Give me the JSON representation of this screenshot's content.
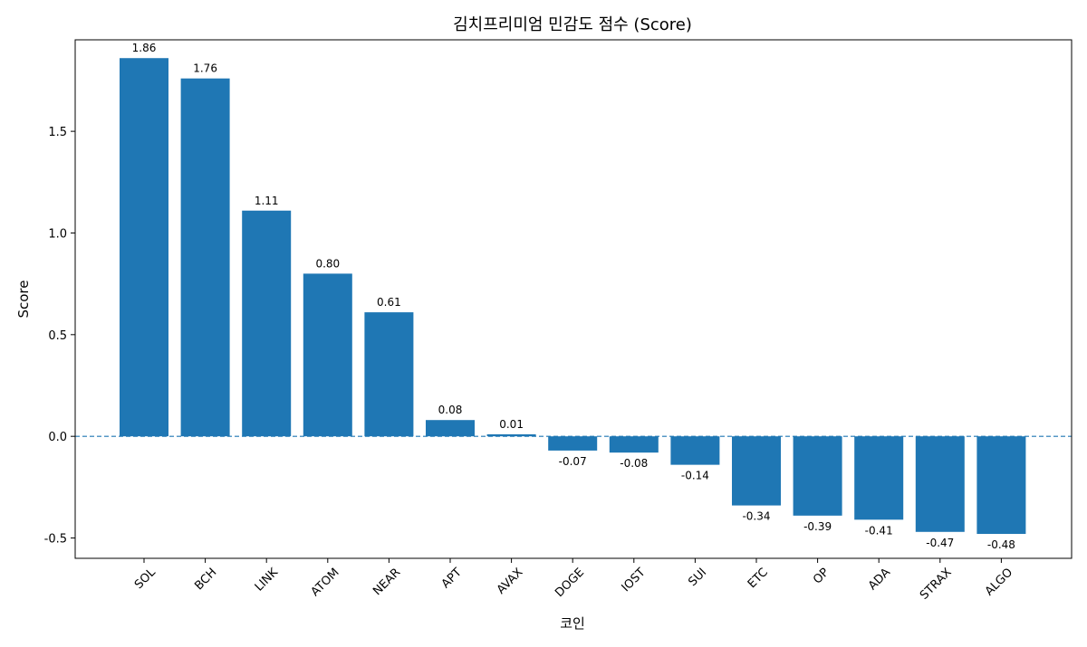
{
  "chart_data": {
    "type": "bar",
    "title": "김치프리미엄 민감도 점수 (Score)",
    "xlabel": "코인",
    "ylabel": "Score",
    "categories": [
      "SOL",
      "BCH",
      "LINK",
      "ATOM",
      "NEAR",
      "APT",
      "AVAX",
      "DOGE",
      "IOST",
      "SUI",
      "ETC",
      "OP",
      "ADA",
      "STRAX",
      "ALGO"
    ],
    "values": [
      1.86,
      1.76,
      1.11,
      0.8,
      0.61,
      0.08,
      0.01,
      -0.07,
      -0.08,
      -0.14,
      -0.34,
      -0.39,
      -0.41,
      -0.47,
      -0.48
    ],
    "value_labels": [
      "1.86",
      "1.76",
      "1.11",
      "0.80",
      "0.61",
      "0.08",
      "0.01",
      "-0.07",
      "-0.08",
      "-0.14",
      "-0.34",
      "-0.39",
      "-0.41",
      "-0.47",
      "-0.48"
    ],
    "ylim": [
      -0.6,
      1.95
    ],
    "yticks": [
      -0.5,
      0.0,
      0.5,
      1.0,
      1.5
    ],
    "ytick_labels": [
      "-0.5",
      "0.0",
      "0.5",
      "1.0",
      "1.5"
    ],
    "zero_line": {
      "value": 0.0,
      "style": "dashed"
    },
    "grid": false,
    "colors": {
      "bar": "#1f77b4",
      "zero_line": "#1f77b4"
    }
  }
}
